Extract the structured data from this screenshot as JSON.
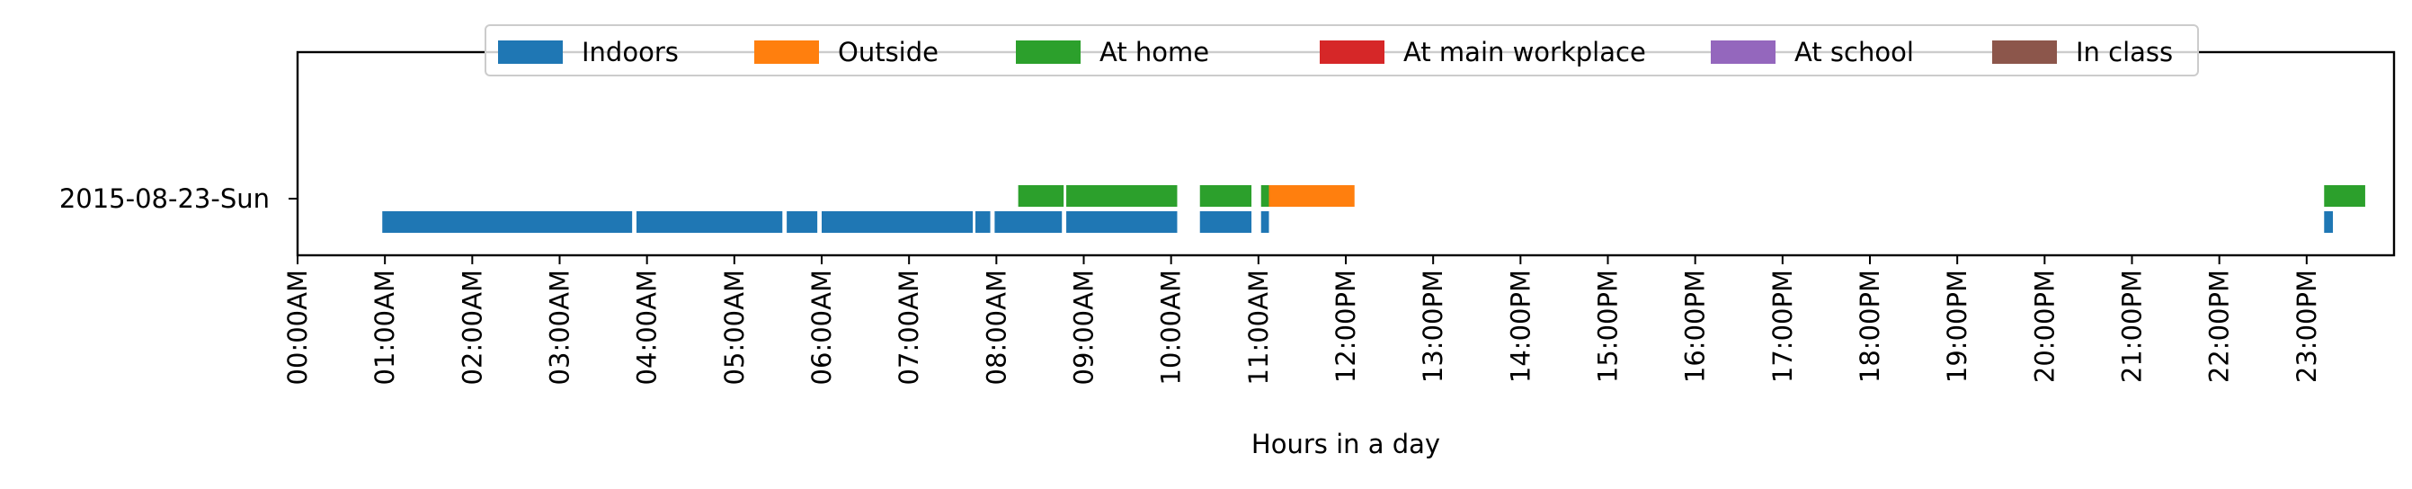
{
  "chart_data": {
    "type": "timeline",
    "xlabel": "Hours in a day",
    "ylabel": "",
    "xlim": [
      0,
      24
    ],
    "grid": false,
    "legend_placement": "upper center",
    "rows": [
      "2015-08-23-Sun"
    ],
    "x_ticks": [
      "00:00AM",
      "01:00AM",
      "02:00AM",
      "03:00AM",
      "04:00AM",
      "05:00AM",
      "06:00AM",
      "07:00AM",
      "08:00AM",
      "09:00AM",
      "10:00AM",
      "11:00AM",
      "12:00PM",
      "13:00PM",
      "14:00PM",
      "15:00PM",
      "16:00PM",
      "17:00PM",
      "18:00PM",
      "19:00PM",
      "20:00PM",
      "21:00PM",
      "22:00PM",
      "23:00PM"
    ],
    "series": [
      {
        "name": "Indoors",
        "color": "#1f77b4",
        "lane": 0,
        "intervals": [
          [
            0.97,
            3.83
          ],
          [
            3.88,
            5.55
          ],
          [
            5.6,
            5.95
          ],
          [
            6.0,
            7.73
          ],
          [
            7.76,
            7.93
          ],
          [
            7.98,
            8.75
          ],
          [
            8.8,
            10.07
          ],
          [
            10.33,
            10.92
          ],
          [
            11.03,
            11.12
          ],
          [
            23.2,
            23.3
          ]
        ]
      },
      {
        "name": "Outside",
        "color": "#ff7f0e",
        "lane": 1,
        "intervals": [
          [
            11.12,
            12.1
          ]
        ]
      },
      {
        "name": "At home",
        "color": "#2ca02c",
        "lane": 1,
        "intervals": [
          [
            8.25,
            8.77
          ],
          [
            8.8,
            10.07
          ],
          [
            10.33,
            10.92
          ],
          [
            11.03,
            11.12
          ],
          [
            23.2,
            23.67
          ]
        ]
      },
      {
        "name": "At main workplace",
        "color": "#d62728",
        "lane": 2,
        "intervals": []
      },
      {
        "name": "At school",
        "color": "#9467bd",
        "lane": 3,
        "intervals": []
      },
      {
        "name": "In class",
        "color": "#8c564b",
        "lane": 4,
        "intervals": []
      }
    ]
  }
}
